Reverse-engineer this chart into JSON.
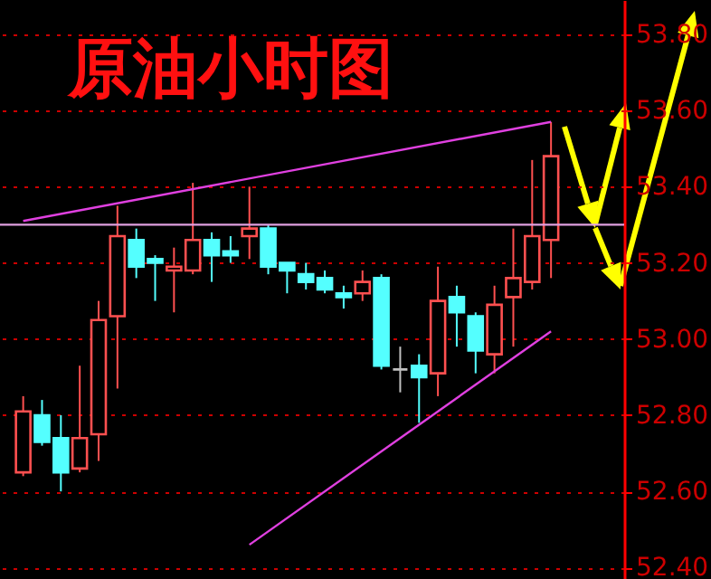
{
  "chart_data": {
    "type": "candlestick",
    "title": "原油小时图",
    "categories": [
      null,
      null,
      null,
      null,
      null,
      null,
      null,
      null,
      null,
      null,
      null,
      null,
      null,
      null,
      null,
      null,
      null,
      null,
      null,
      null,
      null,
      null,
      null,
      null,
      null,
      null,
      null,
      null,
      null
    ],
    "ohlc": [
      [
        52.65,
        52.85,
        52.64,
        52.81
      ],
      [
        52.8,
        52.84,
        52.72,
        52.73
      ],
      [
        52.74,
        52.8,
        52.6,
        52.65
      ],
      [
        52.66,
        52.93,
        52.65,
        52.74
      ],
      [
        52.75,
        53.1,
        52.68,
        53.05
      ],
      [
        53.06,
        53.35,
        52.87,
        53.27
      ],
      [
        53.26,
        53.29,
        53.16,
        53.19
      ],
      [
        53.21,
        53.22,
        53.1,
        53.2
      ],
      [
        53.18,
        53.24,
        53.07,
        53.19
      ],
      [
        53.18,
        53.41,
        53.17,
        53.26
      ],
      [
        53.26,
        53.28,
        53.15,
        53.22
      ],
      [
        53.23,
        53.27,
        53.2,
        53.22
      ],
      [
        53.27,
        53.4,
        53.21,
        53.29
      ],
      [
        53.29,
        53.3,
        53.17,
        53.19
      ],
      [
        53.2,
        53.2,
        53.12,
        53.18
      ],
      [
        53.17,
        53.2,
        53.13,
        53.15
      ],
      [
        53.16,
        53.18,
        53.12,
        53.13
      ],
      [
        53.12,
        53.14,
        53.08,
        53.11
      ],
      [
        53.12,
        53.18,
        53.1,
        53.15
      ],
      [
        53.16,
        53.17,
        52.92,
        52.93
      ],
      [
        52.92,
        52.98,
        52.86,
        52.92
      ],
      [
        52.93,
        52.96,
        52.78,
        52.9
      ],
      [
        52.91,
        53.19,
        52.85,
        53.1
      ],
      [
        53.11,
        53.14,
        52.98,
        53.07
      ],
      [
        53.06,
        53.07,
        52.91,
        52.97
      ],
      [
        52.96,
        53.14,
        52.91,
        53.09
      ],
      [
        53.11,
        53.29,
        52.98,
        53.16
      ],
      [
        53.15,
        53.47,
        53.13,
        53.27
      ],
      [
        53.26,
        53.57,
        53.16,
        53.48
      ]
    ],
    "colors": [
      "#ff5050",
      "#54ffff",
      "#54ffff",
      "#ff5050",
      "#ff5050",
      "#ff5050",
      "#54ffff",
      "#54ffff",
      "#ff5050",
      "#ff5050",
      "#54ffff",
      "#54ffff",
      "#ff5050",
      "#54ffff",
      "#54ffff",
      "#54ffff",
      "#54ffff",
      "#54ffff",
      "#ff5050",
      "#54ffff",
      "#c0c0c0",
      "#54ffff",
      "#ff5050",
      "#54ffff",
      "#54ffff",
      "#ff5050",
      "#ff5050",
      "#ff5050",
      "#ff5050"
    ],
    "series": [
      {
        "type": "line",
        "color": "#e040e0",
        "values": [
          53.31,
          null,
          null,
          null,
          null,
          null,
          null,
          null,
          null,
          null,
          null,
          null,
          null,
          null,
          null,
          null,
          null,
          null,
          null,
          null,
          null,
          null,
          null,
          null,
          null,
          null,
          null,
          null,
          53.57
        ]
      },
      {
        "type": "line",
        "color": "#e040e0",
        "values": [
          null,
          null,
          null,
          null,
          null,
          null,
          null,
          null,
          null,
          null,
          null,
          null,
          52.46,
          null,
          null,
          null,
          null,
          null,
          null,
          null,
          null,
          null,
          null,
          null,
          null,
          null,
          null,
          null,
          53.02
        ]
      }
    ],
    "ref_lines": [
      {
        "axis": "y",
        "value": 53.3,
        "color": "#e0a0e0"
      }
    ],
    "ylim": [
      52.37,
      53.89
    ],
    "yticks": [
      {
        "value": 52.4,
        "label": "52.40"
      },
      {
        "value": 52.6,
        "label": "52.60"
      },
      {
        "value": 52.8,
        "label": "52.80"
      },
      {
        "value": 53.0,
        "label": "53.00"
      },
      {
        "value": 53.2,
        "label": "53.20"
      },
      {
        "value": 53.4,
        "label": "53.40"
      },
      {
        "value": 53.6,
        "label": "53.60"
      },
      {
        "value": 53.8,
        "label": "53.80"
      }
    ],
    "grid": "y",
    "tick_labels": "y"
  }
}
